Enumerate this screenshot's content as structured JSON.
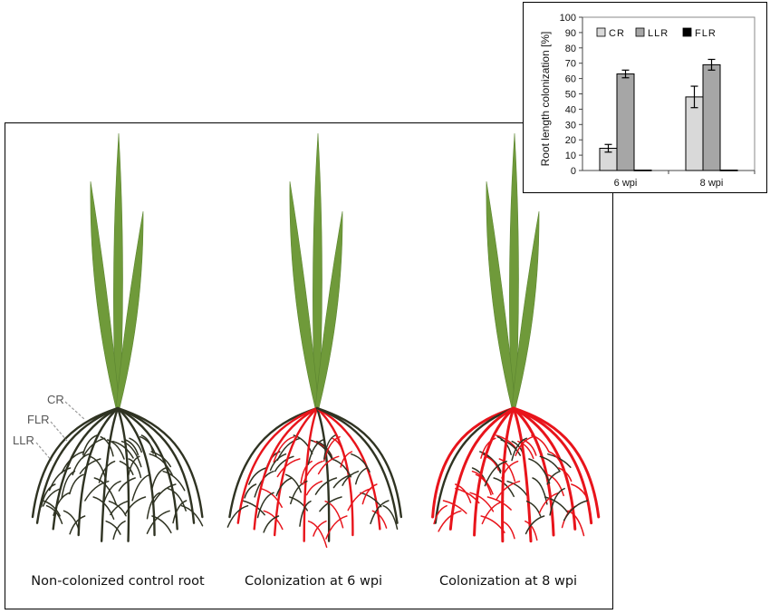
{
  "captions": {
    "control": "Non-colonized control root",
    "wpi6": "Colonization at 6 wpi",
    "wpi8": "Colonization at 8 wpi"
  },
  "root_labels": {
    "cr": "CR",
    "flr": "FLR",
    "llr": "LLR"
  },
  "colors": {
    "leaf": "#6f9a3a",
    "root": "#2f3322",
    "colonized": "#e8141b",
    "bar_cr": "#d9d9d9",
    "bar_llr": "#a6a6a6",
    "bar_flr": "#000000"
  },
  "chart_data": {
    "type": "bar",
    "categories": [
      "6 wpi",
      "8 wpi"
    ],
    "series": [
      {
        "name": "CR",
        "values": [
          14.5,
          48
        ],
        "errors": [
          2.5,
          7
        ]
      },
      {
        "name": "LLR",
        "values": [
          63,
          69
        ],
        "errors": [
          2.5,
          3.5
        ]
      },
      {
        "name": "FLR",
        "values": [
          0.3,
          0.3
        ],
        "errors": [
          0,
          0
        ]
      }
    ],
    "ylabel": "Root length colonization [%]",
    "ylim": [
      0,
      100
    ],
    "yticks": [
      0,
      10,
      20,
      30,
      40,
      50,
      60,
      70,
      80,
      90,
      100
    ],
    "legend": "top",
    "grid": false
  }
}
